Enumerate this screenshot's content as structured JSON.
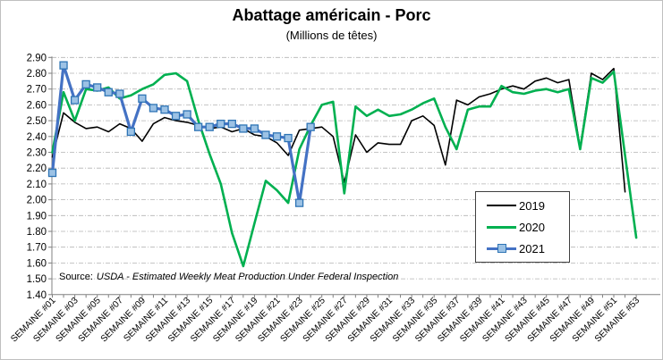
{
  "header": {
    "title": "Abattage américain - Porc",
    "subtitle": "(Millions de têtes)"
  },
  "source_note": {
    "prefix": "Source:",
    "text": "USDA - Estimated Weekly Meat Production Under Federal Inspection"
  },
  "chart_data": {
    "type": "line",
    "title": "Abattage américain - Porc",
    "subtitle": "(Millions de têtes)",
    "ylabel": "",
    "xlabel": "",
    "ylim": [
      1.4,
      2.9
    ],
    "y_tick_step": 0.1,
    "weeks_total": 53,
    "grid": true,
    "legend_position": "inside-right",
    "x_tick_labels": [
      "SEMAINE #01",
      "SEMAINE #03",
      "SEMAINE #05",
      "SEMAINE #07",
      "SEMAINE #09",
      "SEMAINE #11",
      "SEMAINE #13",
      "SEMAINE #15",
      "SEMAINE #17",
      "SEMAINE #19",
      "SEMAINE #21",
      "SEMAINE #23",
      "SEMAINE #25",
      "SEMAINE #27",
      "SEMAINE #29",
      "SEMAINE #31",
      "SEMAINE #33",
      "SEMAINE #35",
      "SEMAINE #37",
      "SEMAINE #39",
      "SEMAINE #41",
      "SEMAINE #43",
      "SEMAINE #45",
      "SEMAINE #47",
      "SEMAINE #49",
      "SEMAINE #51",
      "SEMAINE #53"
    ],
    "series": [
      {
        "name": "2019",
        "color": "#000000",
        "line_width": 1.6,
        "marker": "none",
        "values": [
          2.27,
          2.55,
          2.49,
          2.45,
          2.46,
          2.43,
          2.48,
          2.45,
          2.37,
          2.48,
          2.52,
          2.5,
          2.49,
          2.47,
          2.45,
          2.46,
          2.43,
          2.45,
          2.41,
          2.4,
          2.36,
          2.28,
          2.44,
          2.45,
          2.46,
          2.4,
          2.11,
          2.41,
          2.3,
          2.36,
          2.35,
          2.35,
          2.5,
          2.53,
          2.47,
          2.22,
          2.63,
          2.6,
          2.65,
          2.67,
          2.7,
          2.72,
          2.7,
          2.75,
          2.77,
          2.74,
          2.76,
          2.33,
          2.8,
          2.76,
          2.83,
          2.05
        ]
      },
      {
        "name": "2020",
        "color": "#00B050",
        "line_width": 2.6,
        "marker": "none",
        "values": [
          2.3,
          2.68,
          2.5,
          2.7,
          2.69,
          2.71,
          2.64,
          2.66,
          2.7,
          2.73,
          2.79,
          2.8,
          2.75,
          2.5,
          2.29,
          2.1,
          1.79,
          1.58,
          1.85,
          2.12,
          2.06,
          1.98,
          2.32,
          2.47,
          2.6,
          2.62,
          2.04,
          2.59,
          2.53,
          2.57,
          2.53,
          2.54,
          2.57,
          2.61,
          2.64,
          2.46,
          2.32,
          2.57,
          2.59,
          2.59,
          2.72,
          2.68,
          2.67,
          2.69,
          2.7,
          2.68,
          2.7,
          2.32,
          2.77,
          2.74,
          2.81,
          2.28,
          1.76
        ]
      },
      {
        "name": "2021",
        "color": "#4472C4",
        "line_width": 3.2,
        "marker": "square",
        "marker_fill": "#9CC2E5",
        "marker_stroke": "#2E74B5",
        "values": [
          2.17,
          2.85,
          2.63,
          2.73,
          2.71,
          2.68,
          2.67,
          2.43,
          2.64,
          2.58,
          2.57,
          2.53,
          2.54,
          2.46,
          2.46,
          2.48,
          2.48,
          2.45,
          2.45,
          2.41,
          2.4,
          2.39,
          1.98,
          2.46
        ]
      }
    ]
  }
}
